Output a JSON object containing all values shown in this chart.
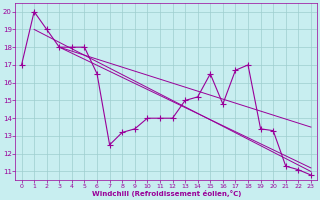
{
  "x": [
    0,
    1,
    2,
    3,
    4,
    5,
    6,
    7,
    8,
    9,
    10,
    11,
    12,
    13,
    14,
    15,
    16,
    17,
    18,
    19,
    20,
    21,
    22,
    23
  ],
  "line1": [
    17.0,
    20.0,
    19.0,
    18.0,
    18.0,
    18.0,
    16.5,
    12.5,
    13.2,
    13.4,
    14.0,
    14.0,
    14.0,
    15.0,
    15.2,
    16.5,
    14.8,
    16.7,
    17.0,
    13.4,
    13.3,
    11.3,
    11.1,
    10.8
  ],
  "trend1_x": [
    1,
    23
  ],
  "trend1_y": [
    19.0,
    11.0
  ],
  "trend2_x": [
    3,
    23
  ],
  "trend2_y": [
    18.0,
    11.2
  ],
  "trend3_x": [
    3,
    23
  ],
  "trend3_y": [
    18.0,
    13.5
  ],
  "xlim": [
    -0.5,
    23.5
  ],
  "ylim": [
    10.5,
    20.5
  ],
  "xticks": [
    0,
    1,
    2,
    3,
    4,
    5,
    6,
    7,
    8,
    9,
    10,
    11,
    12,
    13,
    14,
    15,
    16,
    17,
    18,
    19,
    20,
    21,
    22,
    23
  ],
  "yticks": [
    11,
    12,
    13,
    14,
    15,
    16,
    17,
    18,
    19,
    20
  ],
  "xlabel": "Windchill (Refroidissement éolien,°C)",
  "bg_color": "#c8eef0",
  "line_color": "#990099",
  "grid_color": "#9ecece"
}
